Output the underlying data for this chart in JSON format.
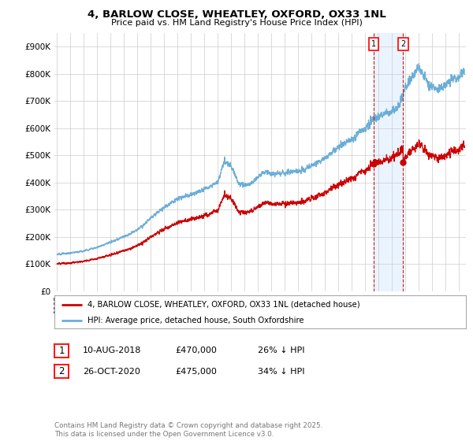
{
  "title_line1": "4, BARLOW CLOSE, WHEATLEY, OXFORD, OX33 1NL",
  "title_line2": "Price paid vs. HM Land Registry's House Price Index (HPI)",
  "xlim_start": 1994.8,
  "xlim_end": 2025.5,
  "ylim_min": 0,
  "ylim_max": 950000,
  "yticks": [
    0,
    100000,
    200000,
    300000,
    400000,
    500000,
    600000,
    700000,
    800000,
    900000
  ],
  "ytick_labels": [
    "£0",
    "£100K",
    "£200K",
    "£300K",
    "£400K",
    "£500K",
    "£600K",
    "£700K",
    "£800K",
    "£900K"
  ],
  "xticks": [
    1995,
    1996,
    1997,
    1998,
    1999,
    2000,
    2001,
    2002,
    2003,
    2004,
    2005,
    2006,
    2007,
    2008,
    2009,
    2010,
    2011,
    2012,
    2013,
    2014,
    2015,
    2016,
    2017,
    2018,
    2019,
    2020,
    2021,
    2022,
    2023,
    2024,
    2025
  ],
  "hpi_color": "#6aaed6",
  "price_color": "#cc0000",
  "shade_color": "#ddeeff",
  "sale1_x": 2018.614,
  "sale1_y": 470000,
  "sale2_x": 2020.822,
  "sale2_y": 475000,
  "legend_property_label": "4, BARLOW CLOSE, WHEATLEY, OXFORD, OX33 1NL (detached house)",
  "legend_hpi_label": "HPI: Average price, detached house, South Oxfordshire",
  "ann1_date": "10-AUG-2018",
  "ann1_price": "£470,000",
  "ann1_hpi": "26% ↓ HPI",
  "ann2_date": "26-OCT-2020",
  "ann2_price": "£475,000",
  "ann2_hpi": "34% ↓ HPI",
  "footnote": "Contains HM Land Registry data © Crown copyright and database right 2025.\nThis data is licensed under the Open Government Licence v3.0.",
  "background_color": "#ffffff",
  "grid_color": "#cccccc"
}
